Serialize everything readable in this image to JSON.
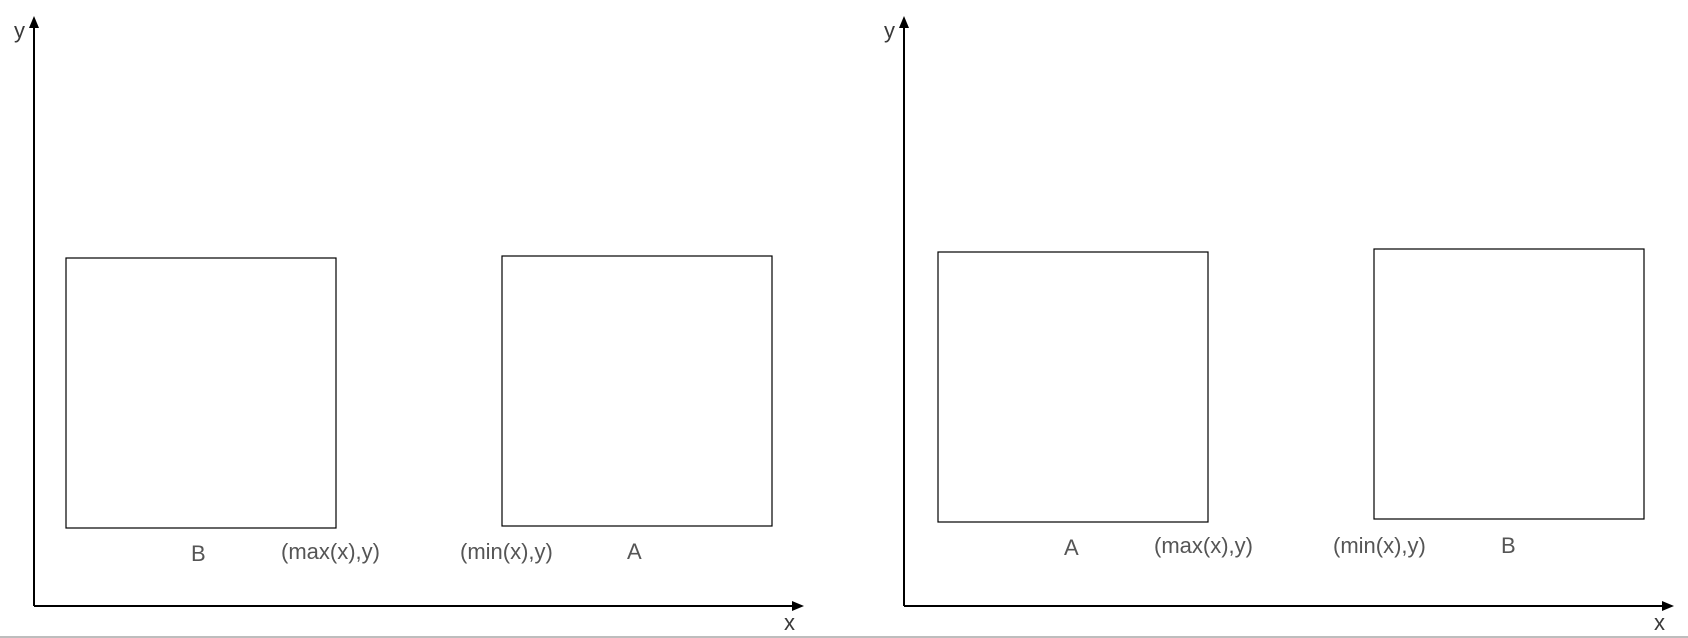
{
  "panels": [
    {
      "x_axis_label": "x",
      "y_axis_label": "y",
      "left_box_label": "B",
      "right_box_label": "A",
      "max_label": "(max(x),y)",
      "min_label": "(min(x),y)"
    },
    {
      "x_axis_label": "x",
      "y_axis_label": "y",
      "left_box_label": "A",
      "right_box_label": "B",
      "max_label": "(max(x),y)",
      "min_label": "(min(x),y)"
    }
  ],
  "colors": {
    "axis": "#000000",
    "label_text": "#555555",
    "box_stroke": "#000000",
    "bottom_rule": "#bdbdbd"
  }
}
